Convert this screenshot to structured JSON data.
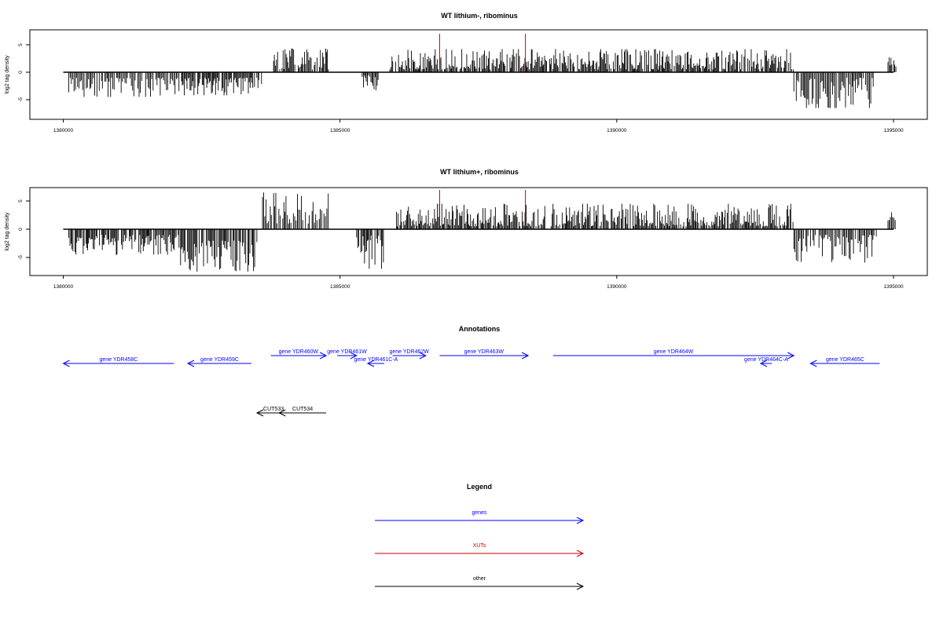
{
  "chart_data": [
    {
      "type": "bar",
      "title": "WT lithium-, ribominus",
      "xlabel": "",
      "ylabel": "log2 tag density",
      "xlim": [
        1380000,
        1395000
      ],
      "ylim": [
        -8,
        7
      ],
      "x_ticks": [
        "1380000",
        "1385000",
        "1390000",
        "1395000"
      ],
      "y_ticks": [
        "-5",
        "0",
        "5"
      ],
      "grid": false,
      "series_summary": [
        {
          "name": "",
          "color": "#000000",
          "x_range": [
            1380100,
            1382150
          ],
          "strand": "minus",
          "magnitude_range": [
            1,
            4.5
          ]
        },
        {
          "name": "",
          "color": "#000000",
          "x_range": [
            1382150,
            1383600
          ],
          "strand": "minus",
          "magnitude_range": [
            1,
            4.2
          ]
        },
        {
          "name": "",
          "color": "#000000",
          "x_range": [
            1383800,
            1384800
          ],
          "strand": "plus",
          "magnitude_range": [
            0.5,
            4.3
          ]
        },
        {
          "name": "",
          "color": "#000000",
          "x_range": [
            1385400,
            1385700
          ],
          "strand": "minus",
          "magnitude_range": [
            0.5,
            3.5
          ]
        },
        {
          "name": "",
          "color": "#000000",
          "x_range": [
            1385900,
            1393200
          ],
          "strand": "plus",
          "magnitude_range": [
            0.5,
            4.2
          ]
        },
        {
          "name": "",
          "color": "#000000",
          "x_range": [
            1393200,
            1394700
          ],
          "strand": "minus",
          "magnitude_range": [
            1,
            6.5
          ]
        },
        {
          "name": "",
          "color": "#000000",
          "x_range": [
            1394900,
            1395050
          ],
          "strand": "plus",
          "magnitude_range": [
            1,
            3
          ]
        }
      ],
      "highlight_bars": [
        {
          "x": 1386800,
          "value": 7,
          "color": "#cc0000"
        },
        {
          "x": 1388350,
          "value": 7,
          "color": "#cc0000"
        }
      ]
    },
    {
      "type": "bar",
      "title": "WT lithium+, ribominus",
      "xlabel": "",
      "ylabel": "log2 tag density",
      "xlim": [
        1380000,
        1395000
      ],
      "ylim": [
        -8,
        7
      ],
      "x_ticks": [
        "1380000",
        "1385000",
        "1390000",
        "1395000"
      ],
      "y_ticks": [
        "-5",
        "0",
        "5"
      ],
      "grid": false,
      "series_summary": [
        {
          "name": "",
          "color": "#000000",
          "x_range": [
            1380100,
            1382100
          ],
          "strand": "minus",
          "magnitude_range": [
            1,
            4.5
          ]
        },
        {
          "name": "",
          "color": "#000000",
          "x_range": [
            1382100,
            1383500
          ],
          "strand": "minus",
          "magnitude_range": [
            2,
            7.5
          ]
        },
        {
          "name": "",
          "color": "#000000",
          "x_range": [
            1383600,
            1384800
          ],
          "strand": "plus",
          "magnitude_range": [
            1,
            6.5
          ]
        },
        {
          "name": "",
          "color": "#000000",
          "x_range": [
            1385300,
            1385800
          ],
          "strand": "minus",
          "magnitude_range": [
            1,
            7
          ]
        },
        {
          "name": "",
          "color": "#000000",
          "x_range": [
            1386000,
            1393200
          ],
          "strand": "plus",
          "magnitude_range": [
            0.5,
            4.5
          ]
        },
        {
          "name": "",
          "color": "#000000",
          "x_range": [
            1393200,
            1394700
          ],
          "strand": "minus",
          "magnitude_range": [
            1,
            6
          ]
        },
        {
          "name": "",
          "color": "#000000",
          "x_range": [
            1394900,
            1395050
          ],
          "strand": "plus",
          "magnitude_range": [
            1,
            3
          ]
        }
      ],
      "highlight_bars": [
        {
          "x": 1386800,
          "value": 7,
          "color": "#cc0000"
        },
        {
          "x": 1388350,
          "value": 7,
          "color": "#cc0000"
        }
      ]
    }
  ],
  "annotations": {
    "title": "Annotations",
    "genes": [
      {
        "label": "gene YDR458C",
        "start": 1380000,
        "end": 1382000,
        "strand": "-",
        "row": 1
      },
      {
        "label": "gene YDR459C",
        "start": 1382250,
        "end": 1383400,
        "strand": "-",
        "row": 1
      },
      {
        "label": "gene YDR460W",
        "start": 1383750,
        "end": 1384750,
        "strand": "+",
        "row": 0
      },
      {
        "label": "gene YDR461W",
        "start": 1384950,
        "end": 1385300,
        "strand": "+",
        "row": 0
      },
      {
        "label": "gene YDR461C-A",
        "start": 1385500,
        "end": 1385800,
        "strand": "-",
        "row": 1
      },
      {
        "label": "gene YDR462W",
        "start": 1385950,
        "end": 1386550,
        "strand": "+",
        "row": 0
      },
      {
        "label": "gene YDR463W",
        "start": 1386800,
        "end": 1388400,
        "strand": "+",
        "row": 0
      },
      {
        "label": "gene YDR464W",
        "start": 1388850,
        "end": 1393200,
        "strand": "+",
        "row": 0
      },
      {
        "label": "gene YDR464C-A",
        "start": 1392600,
        "end": 1392800,
        "strand": "-",
        "row": 1
      },
      {
        "label": "gene YDR465C",
        "start": 1393500,
        "end": 1394750,
        "strand": "-",
        "row": 1
      }
    ],
    "others": [
      {
        "label": "CUT533",
        "start": 1383500,
        "end": 1384100,
        "strand": "-"
      },
      {
        "label": "CUT534",
        "start": 1383900,
        "end": 1384750,
        "strand": "-"
      }
    ],
    "other_prefix": "CUT"
  },
  "legend": {
    "title": "Legend",
    "items": [
      {
        "label": "genes",
        "color": "#0000ff"
      },
      {
        "label": "XUTs",
        "color": "#cc0000"
      },
      {
        "label": "other",
        "color": "#000000"
      }
    ]
  },
  "colors": {
    "gene": "#0000ff",
    "xut": "#cc0000",
    "other": "#000000",
    "bar": "#000000"
  }
}
